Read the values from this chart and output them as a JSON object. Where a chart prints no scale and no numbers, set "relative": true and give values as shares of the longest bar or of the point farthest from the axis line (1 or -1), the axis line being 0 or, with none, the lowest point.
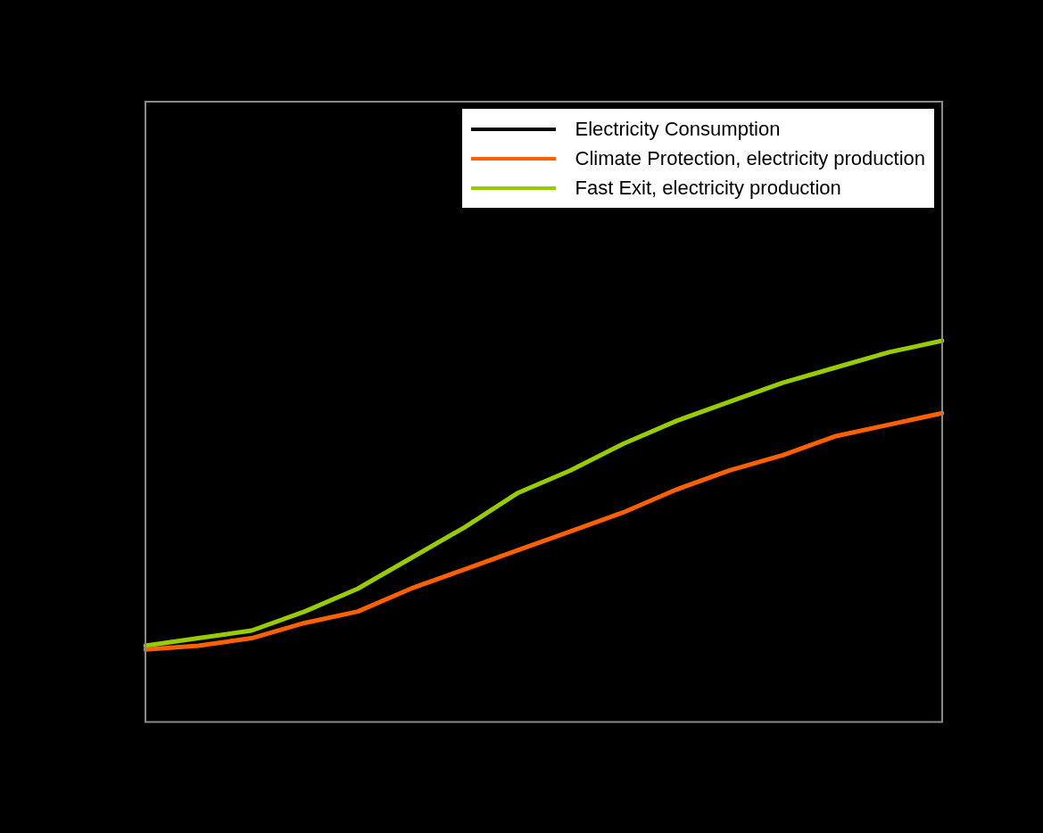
{
  "chart_data": {
    "type": "line",
    "relative": true,
    "categories": [
      null,
      null,
      null,
      null,
      null,
      null,
      null,
      null,
      null,
      null,
      null,
      null,
      null,
      null,
      null,
      null
    ],
    "series": [
      {
        "name": "Electricity Consumption",
        "color": "#000000",
        "values": [
          null,
          null,
          null,
          null,
          null,
          null,
          null,
          null,
          null,
          null,
          null,
          null,
          null,
          null,
          null,
          null
        ]
      },
      {
        "name": "Climate Protection, electricity production",
        "color": "#ff6000",
        "values": [
          0.19,
          0.2,
          0.22,
          0.26,
          0.29,
          0.35,
          0.4,
          0.45,
          0.5,
          0.55,
          0.61,
          0.66,
          0.7,
          0.75,
          0.78,
          0.81
        ]
      },
      {
        "name": "Fast Exit, electricity production",
        "color": "#99cc00",
        "values": [
          0.2,
          0.22,
          0.24,
          0.29,
          0.35,
          0.43,
          0.51,
          0.6,
          0.66,
          0.73,
          0.79,
          0.84,
          0.89,
          0.93,
          0.97,
          1
        ]
      }
    ],
    "legend": "top right",
    "grid": false,
    "marker": "none",
    "line_style": "solid"
  }
}
